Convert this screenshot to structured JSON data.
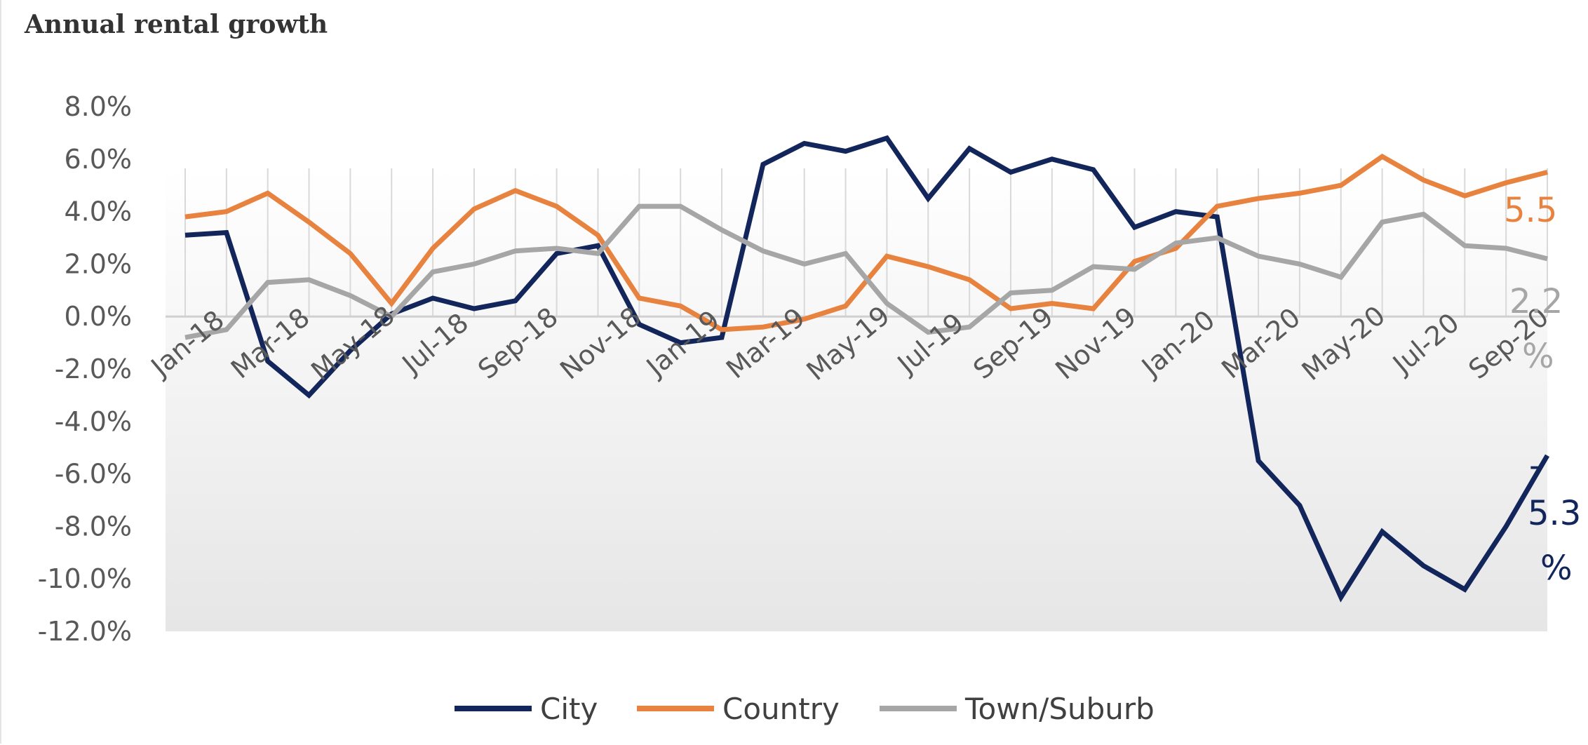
{
  "chart_data": {
    "type": "line",
    "title": "Annual rental growth",
    "xlabel": "",
    "ylabel": "",
    "ylim": [
      -12,
      8
    ],
    "y_ticks": [
      "8.0%",
      "6.0%",
      "4.0%",
      "2.0%",
      "0.0%",
      "-2.0%",
      "-4.0%",
      "-6.0%",
      "-8.0%",
      "-10.0%",
      "-12.0%"
    ],
    "y_tick_values": [
      8,
      6,
      4,
      2,
      0,
      -2,
      -4,
      -6,
      -8,
      -10,
      -12
    ],
    "x": [
      "Jan-18",
      "Feb-18",
      "Mar-18",
      "Apr-18",
      "May-18",
      "Jun-18",
      "Jul-18",
      "Aug-18",
      "Sep-18",
      "Oct-18",
      "Nov-18",
      "Dec-18",
      "Jan-19",
      "Feb-19",
      "Mar-19",
      "Apr-19",
      "May-19",
      "Jun-19",
      "Jul-19",
      "Aug-19",
      "Sep-19",
      "Oct-19",
      "Nov-19",
      "Dec-19",
      "Jan-20",
      "Feb-20",
      "Mar-20",
      "Apr-20",
      "May-20",
      "Jun-20",
      "Jul-20",
      "Aug-20",
      "Sep-20",
      "Oct-20"
    ],
    "x_tick_labels": [
      "Jan-18",
      "Mar-18",
      "May-18",
      "Jul-18",
      "Sep-18",
      "Nov-18",
      "Jan-19",
      "Mar-19",
      "May-19",
      "Jul-19",
      "Sep-19",
      "Nov-19",
      "Jan-20",
      "Mar-20",
      "May-20",
      "Jul-20",
      "Sep-20"
    ],
    "series": [
      {
        "name": "City",
        "color": "#13265c",
        "values": [
          3.1,
          3.2,
          -1.7,
          -3.0,
          -1.3,
          0.1,
          0.7,
          0.3,
          0.6,
          2.4,
          2.7,
          -0.3,
          -1.0,
          -0.8,
          5.8,
          6.6,
          6.3,
          6.8,
          4.5,
          6.4,
          5.5,
          6.0,
          5.6,
          3.4,
          4.0,
          3.8,
          -5.5,
          -7.2,
          -10.7,
          -8.2,
          -9.5,
          -10.4,
          -8.0,
          -5.3
        ],
        "end_label_lines": [
          "-",
          "5.3",
          "%"
        ]
      },
      {
        "name": "Country",
        "color": "#e8823f",
        "values": [
          3.8,
          4.0,
          4.7,
          3.6,
          2.4,
          0.5,
          2.6,
          4.1,
          4.8,
          4.2,
          3.1,
          0.7,
          0.4,
          -0.5,
          -0.4,
          -0.1,
          0.4,
          2.3,
          1.9,
          1.4,
          0.3,
          0.5,
          0.3,
          2.1,
          2.6,
          4.2,
          4.5,
          4.7,
          5.0,
          6.1,
          5.2,
          4.6,
          5.1,
          5.5
        ],
        "end_label_lines": [
          "5.5"
        ]
      },
      {
        "name": "Town/Suburb",
        "color": "#a6a6a6",
        "values": [
          -0.8,
          -0.5,
          1.3,
          1.4,
          0.8,
          0.0,
          1.7,
          2.0,
          2.5,
          2.6,
          2.4,
          4.2,
          4.2,
          3.3,
          2.5,
          2.0,
          2.4,
          0.5,
          -0.6,
          -0.4,
          0.9,
          1.0,
          1.9,
          1.8,
          2.8,
          3.0,
          2.3,
          2.0,
          1.5,
          3.6,
          3.9,
          2.7,
          2.6,
          2.2
        ],
        "end_label_lines": [
          "2.2",
          "%"
        ]
      }
    ],
    "legend": [
      "City",
      "Country",
      "Town/Suburb"
    ],
    "legend_position": "bottom",
    "grid": "vertical"
  }
}
